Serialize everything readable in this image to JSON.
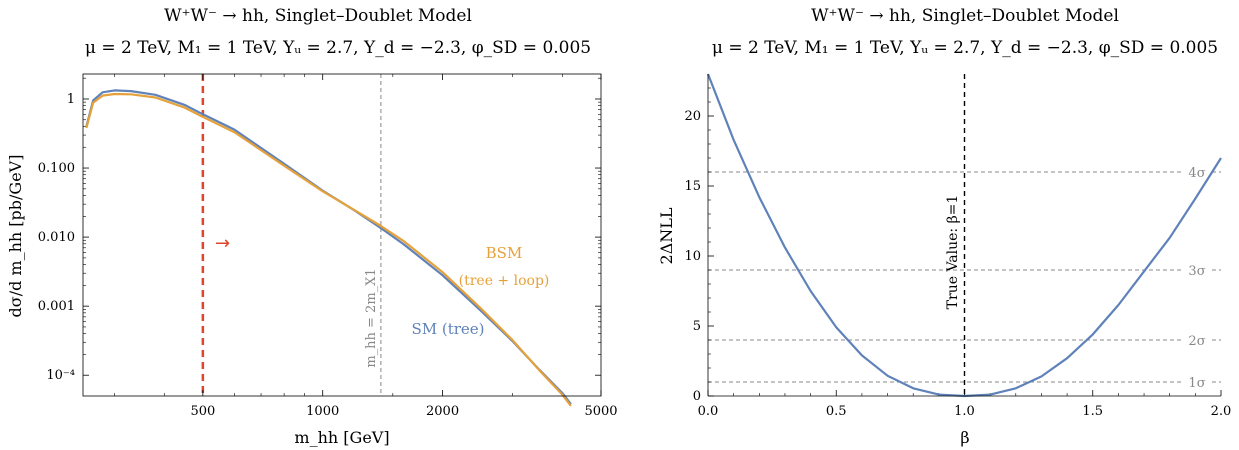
{
  "chart_data": [
    {
      "type": "line",
      "title": "W⁺W⁻ → hh, Singlet–Doublet Model",
      "subtitle": "μ = 2 TeV,  M₁ = 1 TeV,  Yᵤ = 2.7,  Y_d = −2.3,  φ_SD = 0.005",
      "xlabel": "m_hh [GeV]",
      "ylabel": "dσ/d m_hh [pb/GeV]",
      "xscale": "log",
      "yscale": "log",
      "xlim": [
        250,
        5000
      ],
      "ylim": [
        5e-05,
        2.3
      ],
      "xticks": [
        {
          "v": 500,
          "label": "500"
        },
        {
          "v": 1000,
          "label": "1000"
        },
        {
          "v": 2000,
          "label": "2000"
        },
        {
          "v": 5000,
          "label": "5000"
        }
      ],
      "yticks": [
        {
          "v": 1,
          "label": "1"
        },
        {
          "v": 0.1,
          "label": "0.100"
        },
        {
          "v": 0.01,
          "label": "0.010"
        },
        {
          "v": 0.001,
          "label": "0.001"
        },
        {
          "v": 0.0001,
          "label": "10⁻⁴"
        }
      ],
      "series": [
        {
          "name": "SM (tree)",
          "color": "#5f82b9",
          "x": [
            255,
            265,
            280,
            300,
            330,
            380,
            450,
            500,
            600,
            800,
            1000,
            1200,
            1400,
            1600,
            2000,
            2500,
            3000,
            3500,
            4000,
            4200
          ],
          "y": [
            0.4,
            0.95,
            1.25,
            1.33,
            1.3,
            1.15,
            0.82,
            0.6,
            0.36,
            0.115,
            0.047,
            0.0245,
            0.0135,
            0.0078,
            0.0028,
            0.00085,
            0.00031,
            0.00012,
            5.5e-05,
            3.8e-05
          ]
        },
        {
          "name": "BSM",
          "name_line2": "(tree + loop)",
          "color": "#e5a13a",
          "x": [
            255,
            265,
            280,
            300,
            330,
            380,
            450,
            500,
            600,
            800,
            1000,
            1200,
            1400,
            1600,
            2000,
            2500,
            3000,
            3500,
            4000,
            4200
          ],
          "y": [
            0.38,
            0.88,
            1.12,
            1.18,
            1.17,
            1.05,
            0.75,
            0.55,
            0.33,
            0.108,
            0.046,
            0.0248,
            0.0145,
            0.0087,
            0.0031,
            0.00092,
            0.00032,
            0.000118,
            5.2e-05,
            3.6e-05
          ]
        }
      ],
      "cut_line": {
        "x": 500,
        "color": "#e0452c",
        "arrow": "→"
      },
      "threshold_line": {
        "x": 1400,
        "label": "m_hh = 2m_X1",
        "color": "#888888"
      }
    },
    {
      "type": "line",
      "title": "W⁺W⁻ → hh, Singlet–Doublet Model",
      "subtitle": "μ = 2 TeV,  M₁ = 1 TeV,  Yᵤ = 2.7,  Y_d = −2.3,  φ_SD = 0.005",
      "xlabel": "β",
      "ylabel": "2ΔNLL",
      "xlim": [
        0,
        2
      ],
      "ylim": [
        0,
        23
      ],
      "xticks": [
        {
          "v": 0,
          "label": "0.0"
        },
        {
          "v": 0.5,
          "label": "0.5"
        },
        {
          "v": 1,
          "label": "1.0"
        },
        {
          "v": 1.5,
          "label": "1.5"
        },
        {
          "v": 2,
          "label": "2.0"
        }
      ],
      "yticks": [
        {
          "v": 0,
          "label": "0"
        },
        {
          "v": 5,
          "label": "5"
        },
        {
          "v": 10,
          "label": "10"
        },
        {
          "v": 15,
          "label": "15"
        },
        {
          "v": 20,
          "label": "20"
        }
      ],
      "series": [
        {
          "color": "#5f82b9",
          "x": [
            0,
            0.1,
            0.2,
            0.3,
            0.4,
            0.5,
            0.6,
            0.7,
            0.8,
            0.9,
            1.0,
            1.1,
            1.2,
            1.3,
            1.4,
            1.5,
            1.6,
            1.7,
            1.8,
            1.9,
            2.0
          ],
          "y": [
            23.2,
            18.3,
            14.2,
            10.6,
            7.5,
            4.9,
            2.9,
            1.45,
            0.55,
            0.1,
            0.0,
            0.1,
            0.55,
            1.4,
            2.7,
            4.4,
            6.5,
            8.9,
            11.3,
            14.1,
            17.0
          ]
        }
      ],
      "sigma_lines": [
        {
          "v": 1,
          "label": "1σ"
        },
        {
          "v": 4,
          "label": "2σ"
        },
        {
          "v": 9,
          "label": "3σ"
        },
        {
          "v": 16,
          "label": "4σ"
        }
      ],
      "true_value": {
        "x": 1,
        "label": "True Value: β=1"
      }
    }
  ]
}
